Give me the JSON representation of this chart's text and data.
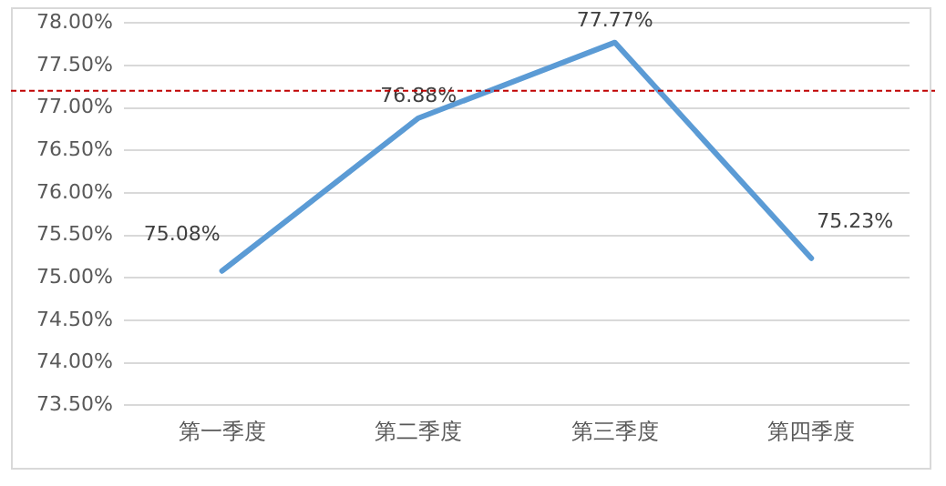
{
  "chart_data": {
    "type": "line",
    "categories": [
      "第一季度",
      "第二季度",
      "第三季度",
      "第四季度"
    ],
    "series": [
      {
        "color": "#5b9bd5",
        "values": [
          75.08,
          76.88,
          77.77,
          75.23
        ],
        "value_labels": [
          "75.08%",
          "76.88%",
          "77.77%",
          "75.23%"
        ]
      }
    ],
    "ylim": [
      73.5,
      78
    ],
    "yticks": [
      {
        "value": 73.5,
        "label": "73.50%"
      },
      {
        "value": 74,
        "label": "74.00%"
      },
      {
        "value": 74.5,
        "label": "74.50%"
      },
      {
        "value": 75,
        "label": "75.00%"
      },
      {
        "value": 75.5,
        "label": "75.50%"
      },
      {
        "value": 76,
        "label": "76.00%"
      },
      {
        "value": 76.5,
        "label": "76.50%"
      },
      {
        "value": 77,
        "label": "77.00%"
      },
      {
        "value": 77.5,
        "label": "77.50%"
      },
      {
        "value": 78,
        "label": "78.00%"
      }
    ],
    "grid": "y",
    "legend": false,
    "marker": "none",
    "line_style": "solid",
    "ref_lines": [
      {
        "axis": "y",
        "value": 77.2,
        "color": "#c00000",
        "line_style": "dashed"
      }
    ]
  }
}
